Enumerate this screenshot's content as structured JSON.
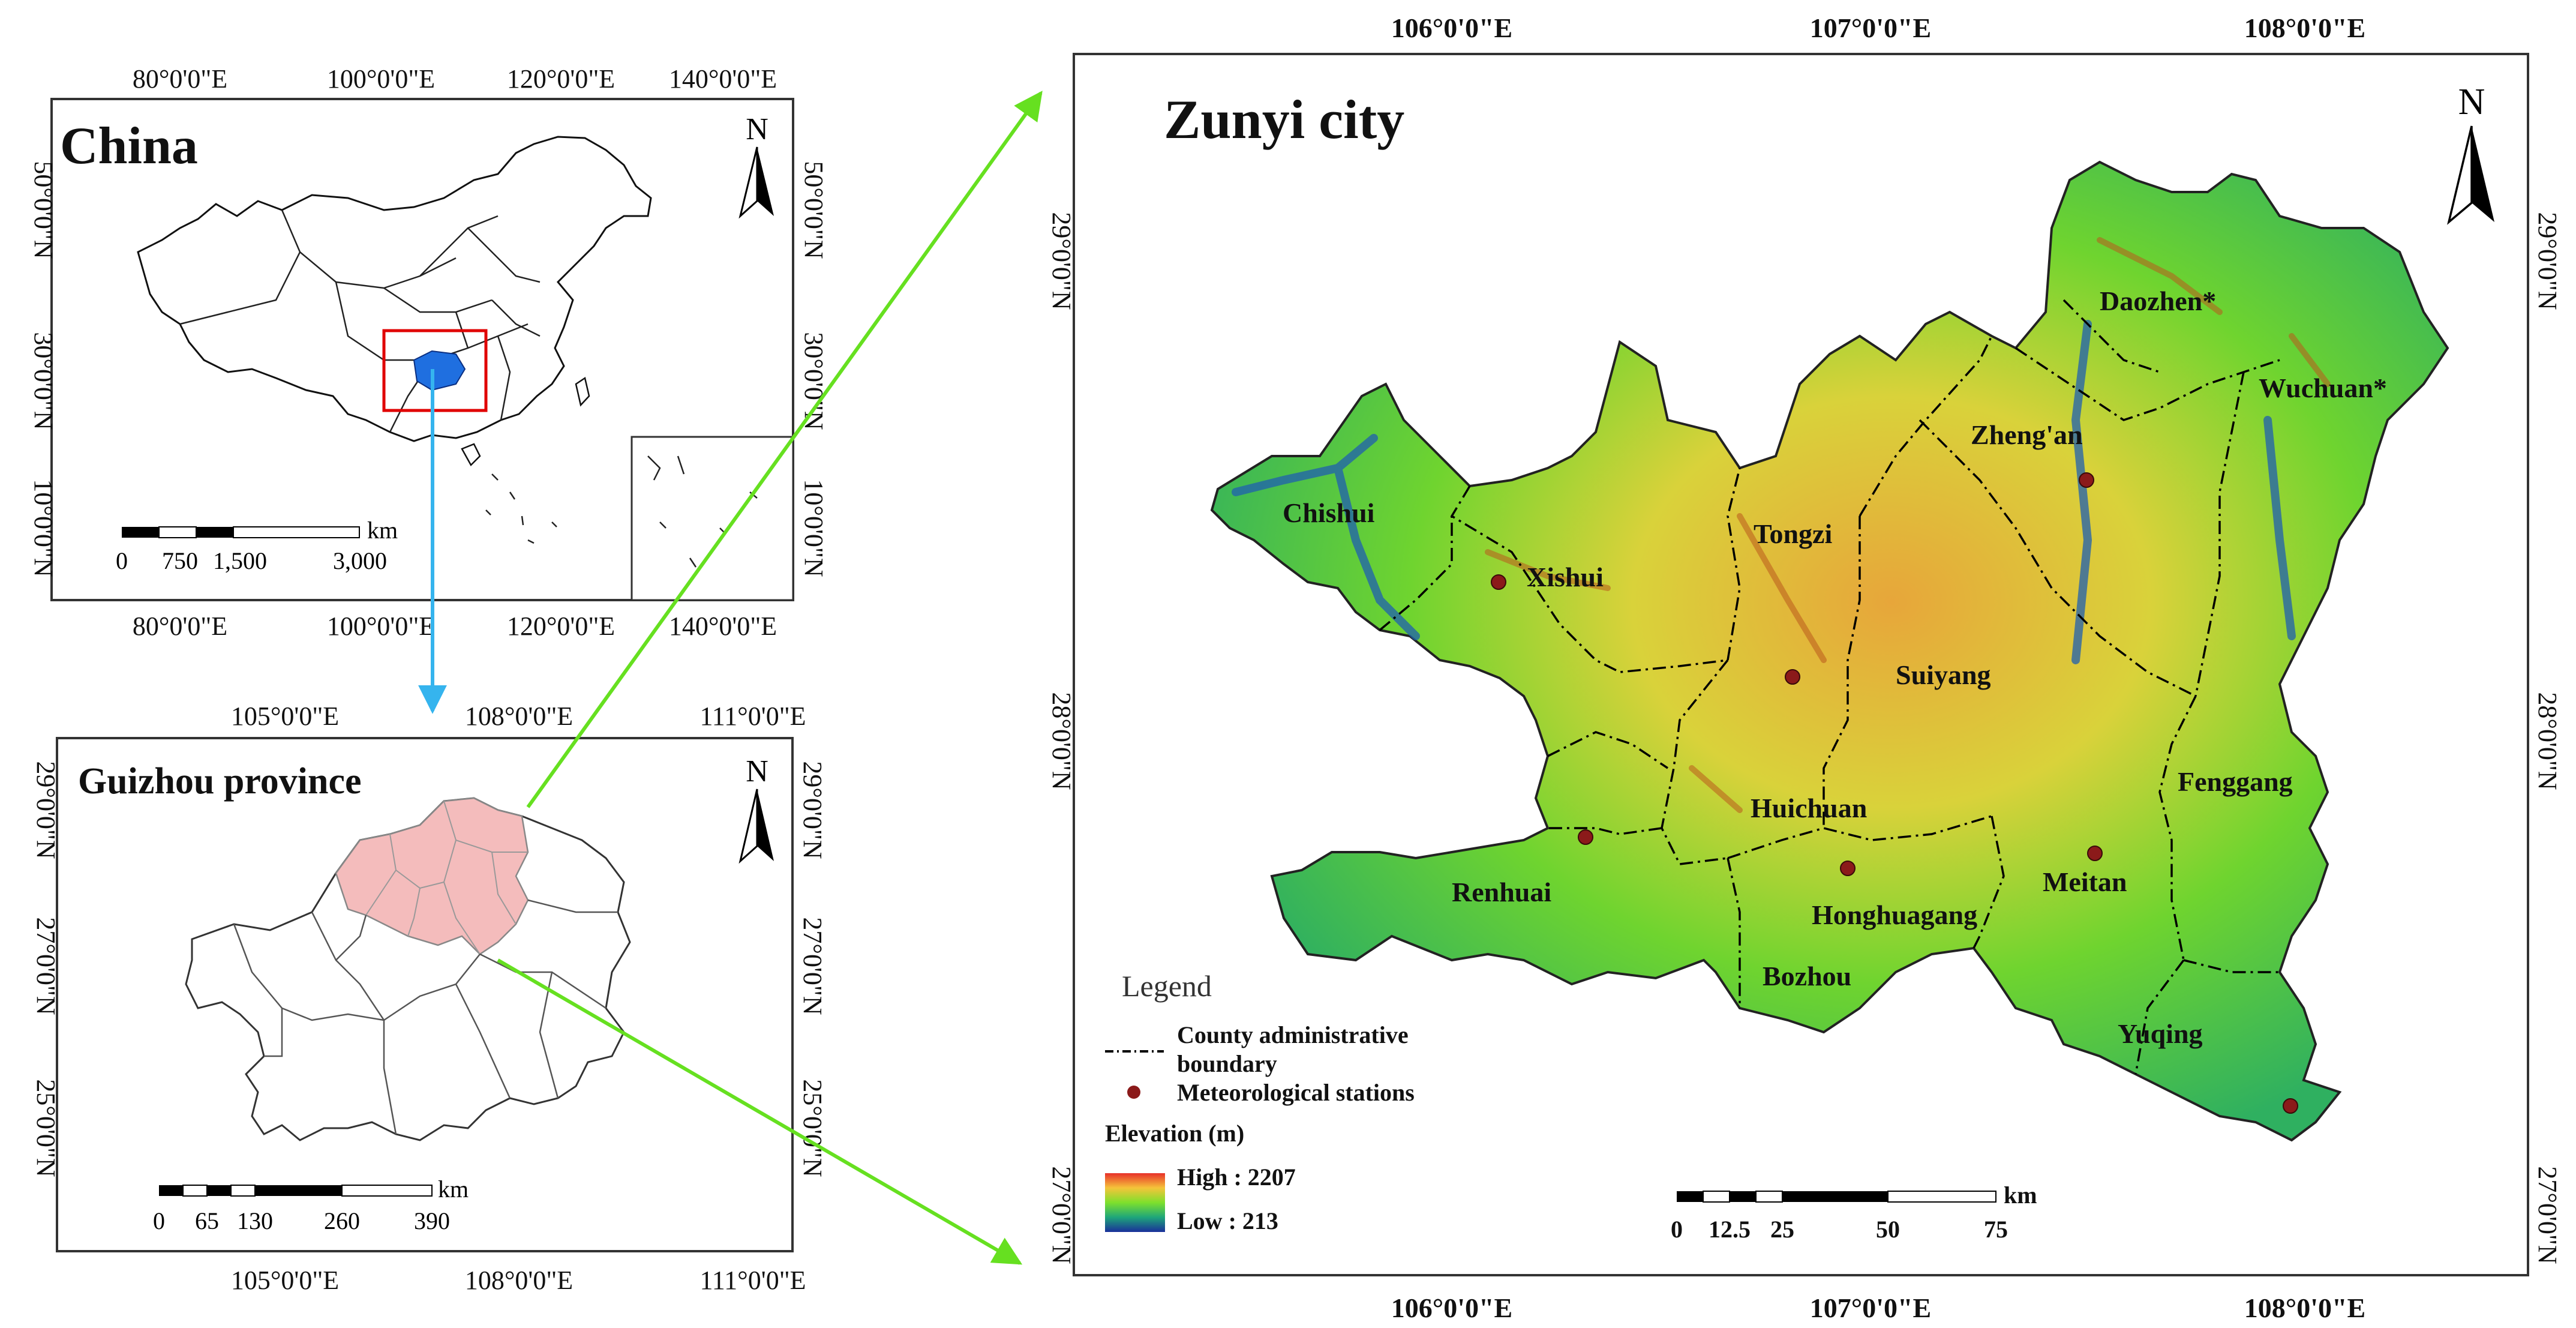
{
  "china": {
    "title": "China",
    "north": "N",
    "top_ticks": [
      "80°0'0\"E",
      "100°0'0\"E",
      "120°0'0\"E",
      "140°0'0\"E"
    ],
    "bottom_ticks": [
      "80°0'0\"E",
      "100°0'0\"E",
      "120°0'0\"E",
      "140°0'0\"E"
    ],
    "left_ticks": [
      "50°0'0\"N",
      "30°0'0\"N",
      "10°0'0\"N"
    ],
    "right_ticks": [
      "50°0'0\"N",
      "30°0'0\"N",
      "10°0'0\"N"
    ],
    "scale": {
      "unit": "km",
      "labels": [
        "0",
        "750",
        "1,500",
        "3,000"
      ]
    },
    "colors": {
      "highlight": "#1f6fe0",
      "box": "#e00000"
    }
  },
  "guizhou": {
    "title": "Guizhou province",
    "north": "N",
    "top_ticks": [
      "105°0'0\"E",
      "108°0'0\"E",
      "111°0'0\"E"
    ],
    "bottom_ticks": [
      "105°0'0\"E",
      "108°0'0\"E",
      "111°0'0\"E"
    ],
    "left_ticks": [
      "29°0'0\"N",
      "27°0'0\"N",
      "25°0'0\"N"
    ],
    "right_ticks": [
      "29°0'0\"N",
      "27°0'0\"N",
      "25°0'0\"N"
    ],
    "scale": {
      "unit": "km",
      "labels": [
        "0",
        "65",
        "130",
        "260",
        "390"
      ]
    },
    "colors": {
      "zunyi_fill": "#f4bcbc"
    }
  },
  "zunyi": {
    "title": "Zunyi city",
    "north": "N",
    "top_ticks": [
      "106°0'0\"E",
      "107°0'0\"E",
      "108°0'0\"E"
    ],
    "bottom_ticks": [
      "106°0'0\"E",
      "107°0'0\"E",
      "108°0'0\"E"
    ],
    "left_ticks": [
      "29°0'0\"N",
      "28°0'0\"N",
      "27°0'0\"N"
    ],
    "right_ticks": [
      "29°0'0\"N",
      "28°0'0\"N",
      "27°0'0\"N"
    ],
    "counties": [
      "Daozhen*",
      "Wuchuan*",
      "Zheng'an",
      "Chishui",
      "Tongzi",
      "Xishui",
      "Suiyang",
      "Fenggang",
      "Huichuan",
      "Renhuai",
      "Meitan",
      "Honghuagang",
      "Bozhou",
      "Yuqing"
    ],
    "scale": {
      "unit": "km",
      "labels": [
        "0",
        "12.5",
        "25",
        "50",
        "75"
      ]
    },
    "legend": {
      "title": "Legend",
      "boundary": "County administrative boundary",
      "boundary_line1": "County administrative",
      "boundary_line2": "boundary",
      "stations": "Meteorological stations",
      "elevation_title": "Elevation (m)",
      "high": "High : 2207",
      "low": "Low : 213"
    },
    "colors": {
      "arrow": "#66e020",
      "link_arrow": "#35b4ee",
      "station": "#8b1a1a"
    }
  }
}
